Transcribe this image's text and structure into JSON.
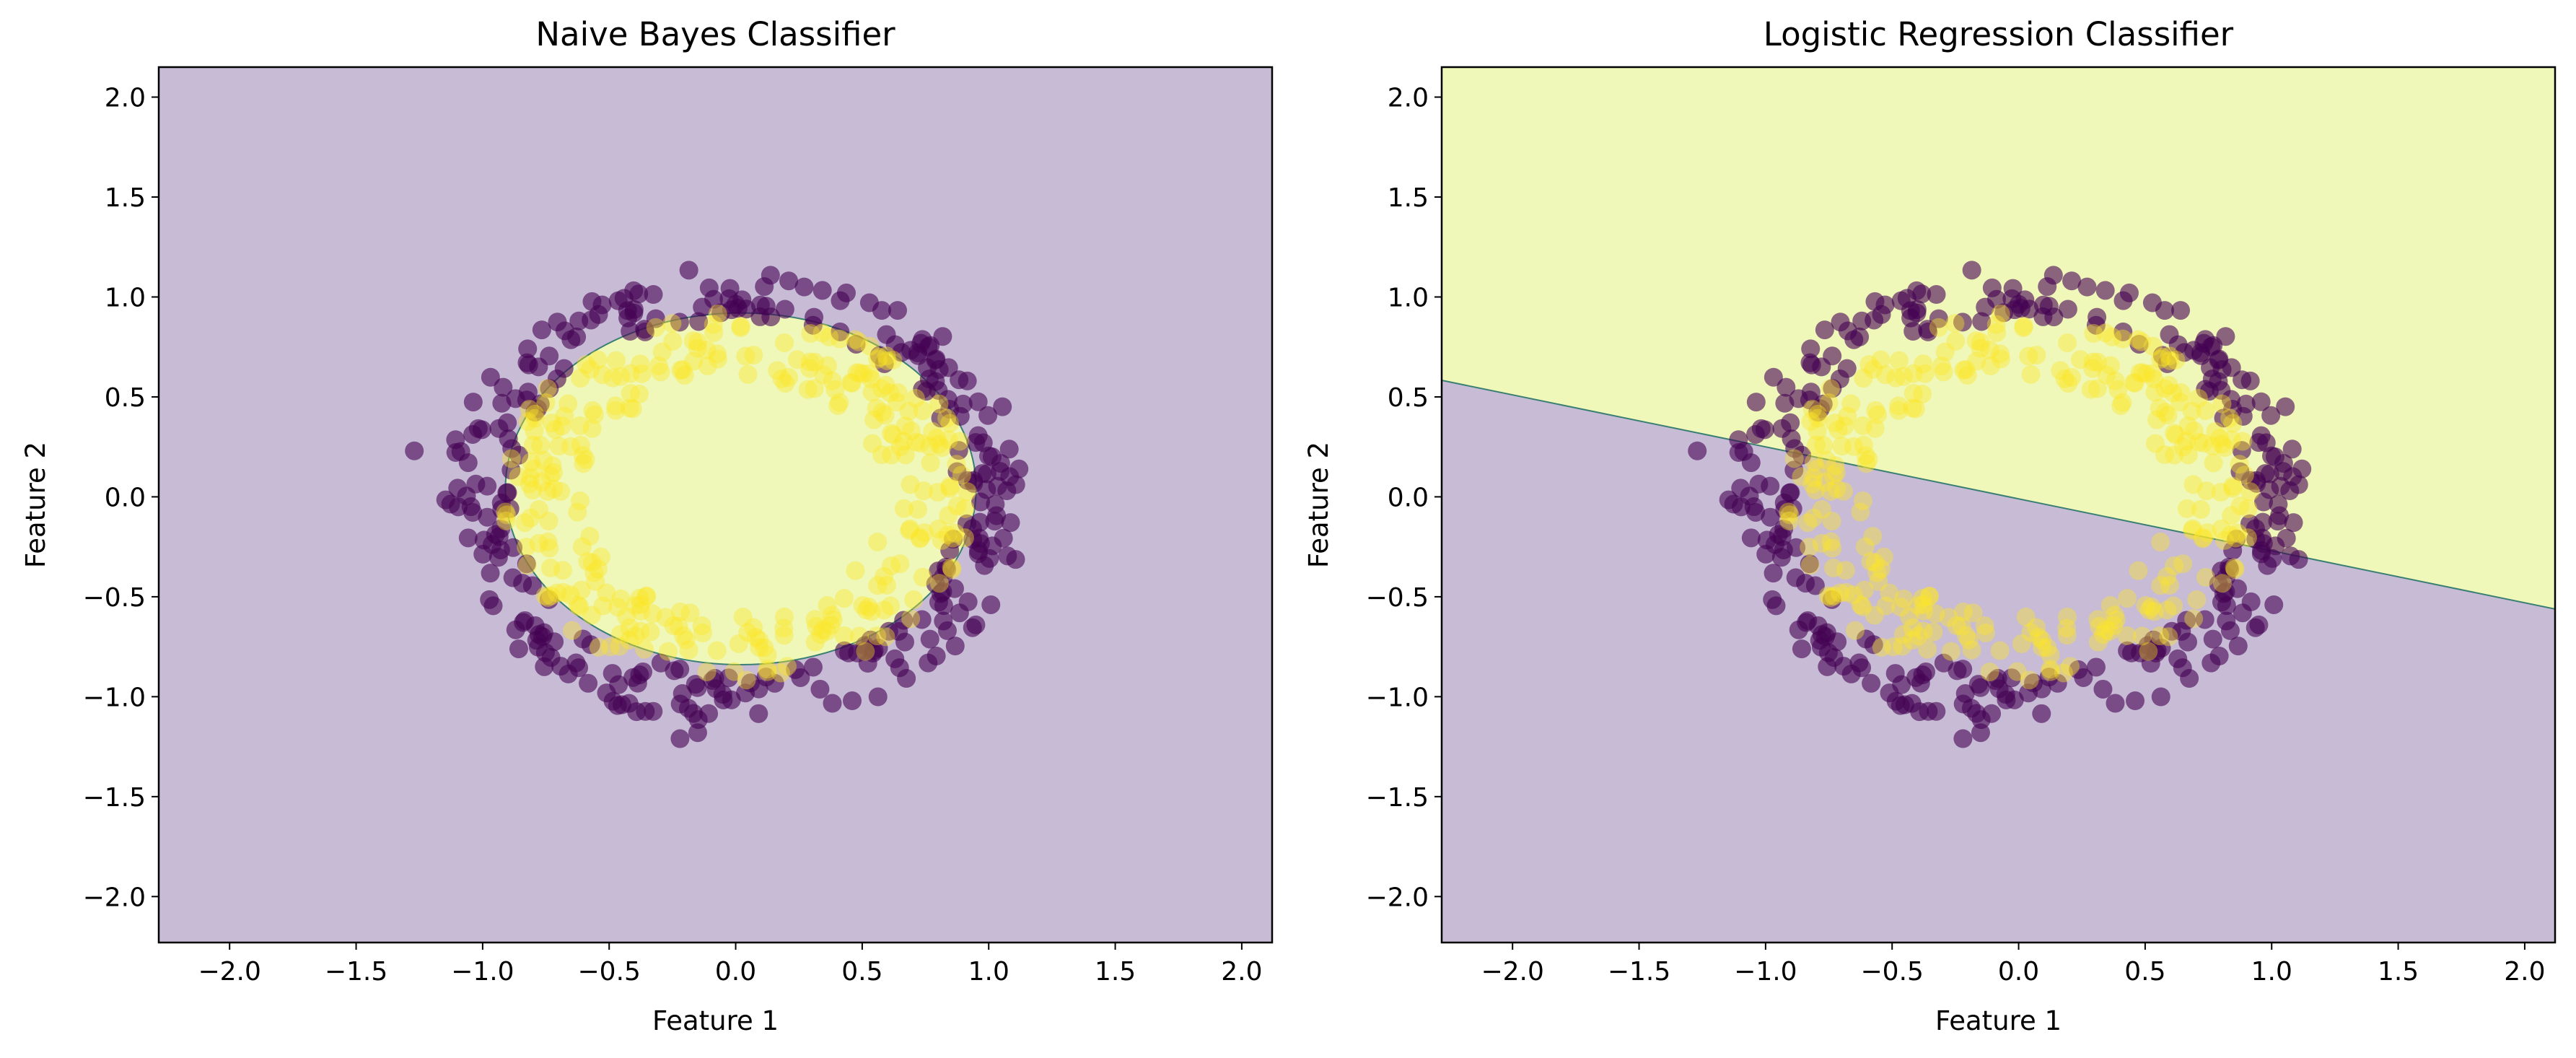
{
  "figure": {
    "panel_count": 2
  },
  "colors": {
    "class0_region": "#c7bbd5",
    "class1_region": "#eff7b9",
    "class0_point": "#440154",
    "class1_point": "#fde725",
    "boundary": "#3a7f73"
  },
  "chart_data": [
    {
      "type": "scatter",
      "title": "Naive Bayes Classifier",
      "xlabel": "Feature 1",
      "ylabel": "Feature 2",
      "xlim": [
        -2.28,
        2.12
      ],
      "ylim": [
        -2.23,
        2.15
      ],
      "xticks": [
        -2.0,
        -1.5,
        -1.0,
        -0.5,
        0.0,
        0.5,
        1.0,
        1.5,
        2.0
      ],
      "yticks": [
        -2.0,
        -1.5,
        -1.0,
        -0.5,
        0.0,
        0.5,
        1.0,
        1.5,
        2.0
      ],
      "xtick_labels": [
        "−2.0",
        "−1.5",
        "−1.0",
        "−0.5",
        "0.0",
        "0.5",
        "1.0",
        "1.5",
        "2.0"
      ],
      "ytick_labels": [
        "−2.0",
        "−1.5",
        "−1.0",
        "−0.5",
        "0.0",
        "0.5",
        "1.0",
        "1.5",
        "2.0"
      ],
      "grid": false,
      "decision_region": {
        "kind": "ellipse",
        "background_class": 0,
        "inside_class": 1,
        "center": [
          0.02,
          0.04
        ],
        "semi_axes": [
          0.93,
          0.88
        ]
      },
      "series": [
        {
          "class": 0,
          "color": "#440154",
          "alpha": 0.6,
          "shape": "ring",
          "radius_range": [
            0.88,
            1.15
          ],
          "count": 300,
          "outliers": [
            [
              -1.27,
              0.23
            ],
            [
              -0.22,
              -1.21
            ],
            [
              -0.15,
              -1.18
            ]
          ]
        },
        {
          "class": 1,
          "color": "#fde725",
          "alpha": 0.4,
          "shape": "ring",
          "radius_range": [
            0.6,
            0.93
          ],
          "count": 300,
          "outliers": []
        }
      ]
    },
    {
      "type": "scatter",
      "title": "Logistic Regression Classifier",
      "xlabel": "Feature 1",
      "ylabel": "Feature 2",
      "xlim": [
        -2.28,
        2.12
      ],
      "ylim": [
        -2.23,
        2.15
      ],
      "xticks": [
        -2.0,
        -1.5,
        -1.0,
        -0.5,
        0.0,
        0.5,
        1.0,
        1.5,
        2.0
      ],
      "yticks": [
        -2.0,
        -1.5,
        -1.0,
        -0.5,
        0.0,
        0.5,
        1.0,
        1.5,
        2.0
      ],
      "xtick_labels": [
        "−2.0",
        "−1.5",
        "−1.0",
        "−0.5",
        "0.0",
        "0.5",
        "1.0",
        "1.5",
        "2.0"
      ],
      "ytick_labels": [
        "−2.0",
        "−1.5",
        "−1.0",
        "−0.5",
        "0.0",
        "0.5",
        "1.0",
        "1.5",
        "2.0"
      ],
      "grid": false,
      "decision_region": {
        "kind": "line",
        "slope": -0.26,
        "intercept": -0.01,
        "above_class": 1,
        "below_class": 0
      },
      "series": [
        {
          "class": 0,
          "color": "#440154",
          "alpha": 0.6,
          "shape": "ring",
          "radius_range": [
            0.88,
            1.15
          ],
          "count": 300,
          "outliers": [
            [
              -1.27,
              0.23
            ],
            [
              -0.22,
              -1.21
            ],
            [
              -0.15,
              -1.18
            ]
          ]
        },
        {
          "class": 1,
          "color": "#fde725",
          "alpha": 0.4,
          "shape": "ring",
          "radius_range": [
            0.6,
            0.93
          ],
          "count": 300,
          "outliers": []
        }
      ]
    }
  ]
}
